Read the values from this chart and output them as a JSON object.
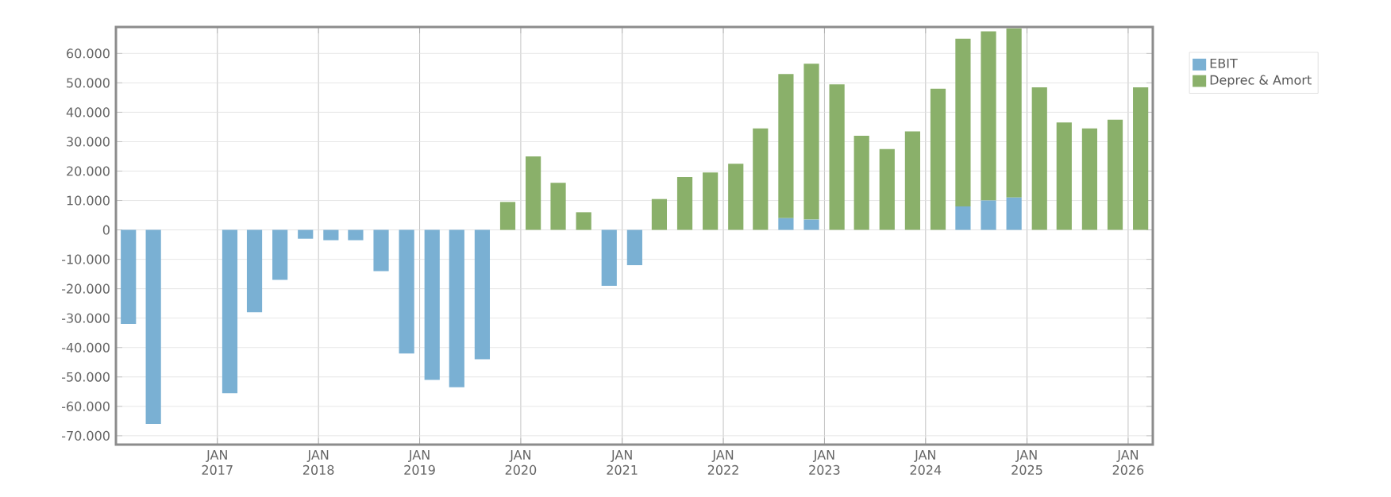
{
  "chart_data": {
    "type": "bar",
    "stacked": true,
    "x": [
      "2016-02-15",
      "2016-05-15",
      "2016-08-15",
      "2016-11-15",
      "2017-02-15",
      "2017-05-15",
      "2017-08-15",
      "2017-11-15",
      "2018-02-15",
      "2018-05-15",
      "2018-08-15",
      "2018-11-15",
      "2019-02-15",
      "2019-05-15",
      "2019-08-15",
      "2019-11-15",
      "2020-02-15",
      "2020-05-15",
      "2020-08-15",
      "2020-11-15",
      "2021-02-15",
      "2021-05-15",
      "2021-08-15",
      "2021-11-15",
      "2022-02-15",
      "2022-05-15",
      "2022-08-15",
      "2022-11-15",
      "2023-02-15",
      "2023-05-15",
      "2023-08-15",
      "2023-11-15",
      "2024-02-15",
      "2024-05-15",
      "2024-08-15",
      "2024-11-15",
      "2025-02-15",
      "2025-05-15",
      "2025-08-15",
      "2025-11-15",
      "2026-02-15"
    ],
    "series": [
      {
        "name": "EBIT",
        "color": "#7ab0d3",
        "values": [
          -32000,
          -66000,
          null,
          null,
          -55500,
          -28000,
          -17000,
          -3000,
          -3500,
          -3500,
          -14000,
          -42000,
          -51000,
          -53500,
          -44000,
          0,
          0,
          0,
          0,
          -19000,
          -12000,
          0,
          0,
          0,
          0,
          0,
          4000,
          3500,
          0,
          0,
          0,
          0,
          0,
          8000,
          10000,
          11000,
          0,
          0,
          0,
          0,
          0
        ]
      },
      {
        "name": "Deprec & Amort",
        "color": "#8ab06a",
        "values": [
          0,
          0,
          0,
          0,
          0,
          0,
          0,
          0,
          0,
          0,
          0,
          0,
          0,
          0,
          0,
          9500,
          25000,
          16000,
          6000,
          0,
          0,
          10500,
          18000,
          19500,
          22500,
          34500,
          49000,
          53000,
          49500,
          32000,
          27500,
          33500,
          48000,
          57000,
          57500,
          57500,
          48500,
          36500,
          34500,
          37500,
          48500
        ]
      }
    ],
    "xlim": [
      "2016-01-01",
      "2026-03-31"
    ],
    "xticks": [
      {
        "value": "2017-01-01",
        "label": "JAN 2017"
      },
      {
        "value": "2018-01-01",
        "label": "JAN 2018"
      },
      {
        "value": "2019-01-01",
        "label": "JAN 2019"
      },
      {
        "value": "2020-01-01",
        "label": "JAN 2020"
      },
      {
        "value": "2021-01-01",
        "label": "JAN 2021"
      },
      {
        "value": "2022-01-01",
        "label": "JAN 2022"
      },
      {
        "value": "2023-01-01",
        "label": "JAN 2023"
      },
      {
        "value": "2024-01-01",
        "label": "JAN 2024"
      },
      {
        "value": "2025-01-01",
        "label": "JAN 2025"
      },
      {
        "value": "2026-01-01",
        "label": "JAN 2026"
      }
    ],
    "ylim": [
      -73000,
      69000
    ],
    "yticks": [
      {
        "value": -70000,
        "label": "-70.000"
      },
      {
        "value": -60000,
        "label": "-60.000"
      },
      {
        "value": -50000,
        "label": "-50.000"
      },
      {
        "value": -40000,
        "label": "-40.000"
      },
      {
        "value": -30000,
        "label": "-30.000"
      },
      {
        "value": -20000,
        "label": "-20.000"
      },
      {
        "value": -10000,
        "label": "-10.000"
      },
      0,
      {
        "value": 10000,
        "label": "10.000"
      },
      {
        "value": 20000,
        "label": "20.000"
      },
      {
        "value": 30000,
        "label": "30.000"
      },
      {
        "value": 40000,
        "label": "40.000"
      },
      {
        "value": 50000,
        "label": "50.000"
      },
      {
        "value": 60000,
        "label": "60.000"
      }
    ],
    "grid": true,
    "legend": "top right"
  }
}
